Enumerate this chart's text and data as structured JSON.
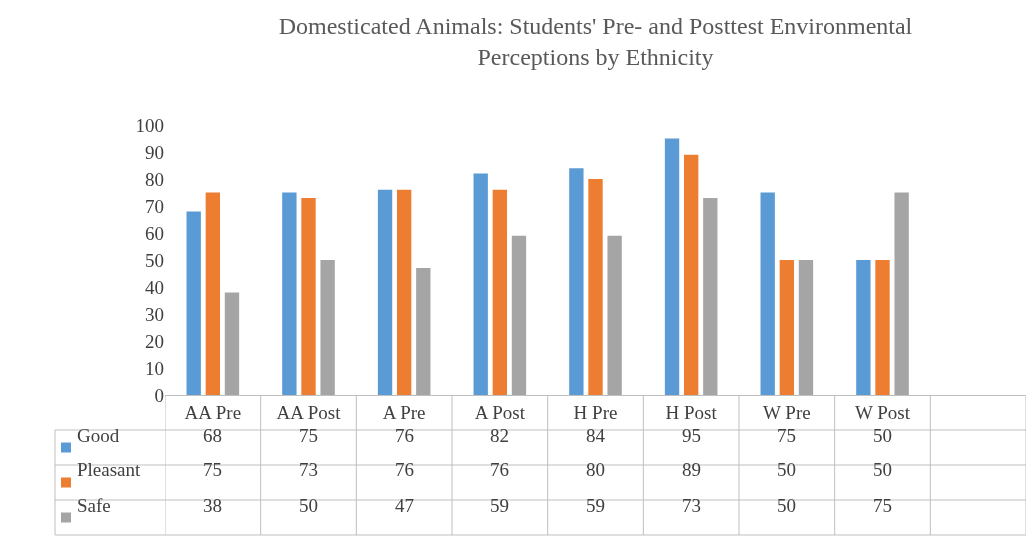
{
  "chart_data": {
    "type": "bar",
    "title": "Domesticated Animals: Students' Pre- and Posttest Environmental Perceptions by Ethnicity",
    "categories": [
      "AA Pre",
      "AA Post",
      "A Pre",
      "A Post",
      "H Pre",
      "H Post",
      "W Pre",
      "W Post",
      null
    ],
    "series": [
      {
        "name": "Good",
        "color": "#5b9bd5",
        "values": [
          68,
          75,
          76,
          82,
          84,
          95,
          75,
          50,
          null
        ]
      },
      {
        "name": "Pleasant",
        "color": "#ed7d31",
        "values": [
          75,
          73,
          76,
          76,
          80,
          89,
          50,
          50,
          null
        ]
      },
      {
        "name": "Safe",
        "color": "#a5a5a5",
        "values": [
          38,
          50,
          47,
          59,
          59,
          73,
          50,
          75,
          null
        ]
      }
    ],
    "ylim": [
      0,
      100
    ],
    "yticks": [
      0,
      10,
      20,
      30,
      40,
      50,
      60,
      70,
      80,
      90,
      100
    ],
    "data_labels": true,
    "grid": false,
    "legend": "bottom left"
  }
}
